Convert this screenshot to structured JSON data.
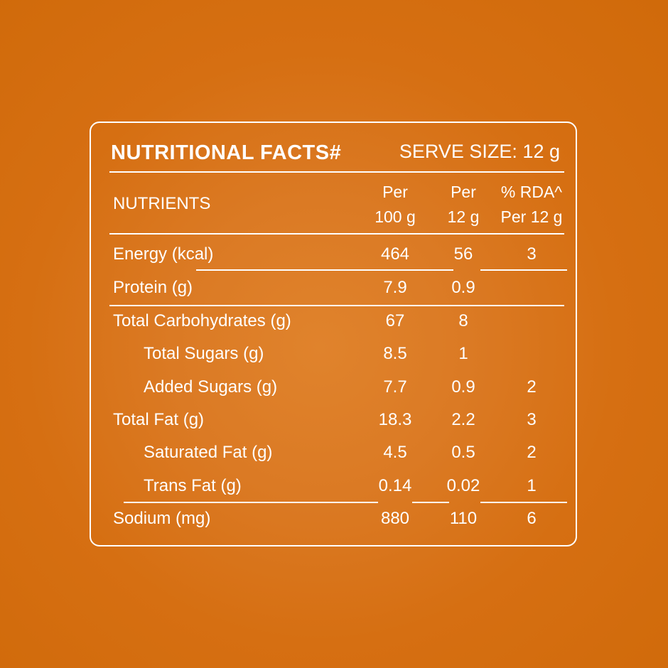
{
  "header": {
    "title": "NUTRITIONAL FACTS#",
    "serve_size": "SERVE SIZE: 12 g"
  },
  "columns": {
    "nutrients": "NUTRIENTS",
    "per100_line1": "Per",
    "per100_line2": "100 g",
    "perserve_line1": "Per",
    "perserve_line2": "12 g",
    "rda_line1": "% RDA^",
    "rda_line2": "Per 12 g"
  },
  "rows": [
    {
      "name": "Energy (kcal)",
      "per100": "464",
      "perserve": "56",
      "rda": "3"
    },
    {
      "name": "Protein (g)",
      "per100": "7.9",
      "perserve": "0.9",
      "rda": ""
    },
    {
      "name": "Total Carbohydrates (g)",
      "per100": "67",
      "perserve": "8",
      "rda": ""
    },
    {
      "name": "Total Sugars (g)",
      "per100": "8.5",
      "perserve": "1",
      "rda": ""
    },
    {
      "name": "Added Sugars (g)",
      "per100": "7.7",
      "perserve": "0.9",
      "rda": "2"
    },
    {
      "name": "Total Fat (g)",
      "per100": "18.3",
      "perserve": "2.2",
      "rda": "3"
    },
    {
      "name": "Saturated Fat (g)",
      "per100": "4.5",
      "perserve": "0.5",
      "rda": "2"
    },
    {
      "name": "Trans Fat (g)",
      "per100": "0.14",
      "perserve": "0.02",
      "rda": "1"
    },
    {
      "name": "Sodium (mg)",
      "per100": "880",
      "perserve": "110",
      "rda": "6"
    }
  ],
  "colors": {
    "background": "#d8731a",
    "foreground": "#ffffff"
  }
}
